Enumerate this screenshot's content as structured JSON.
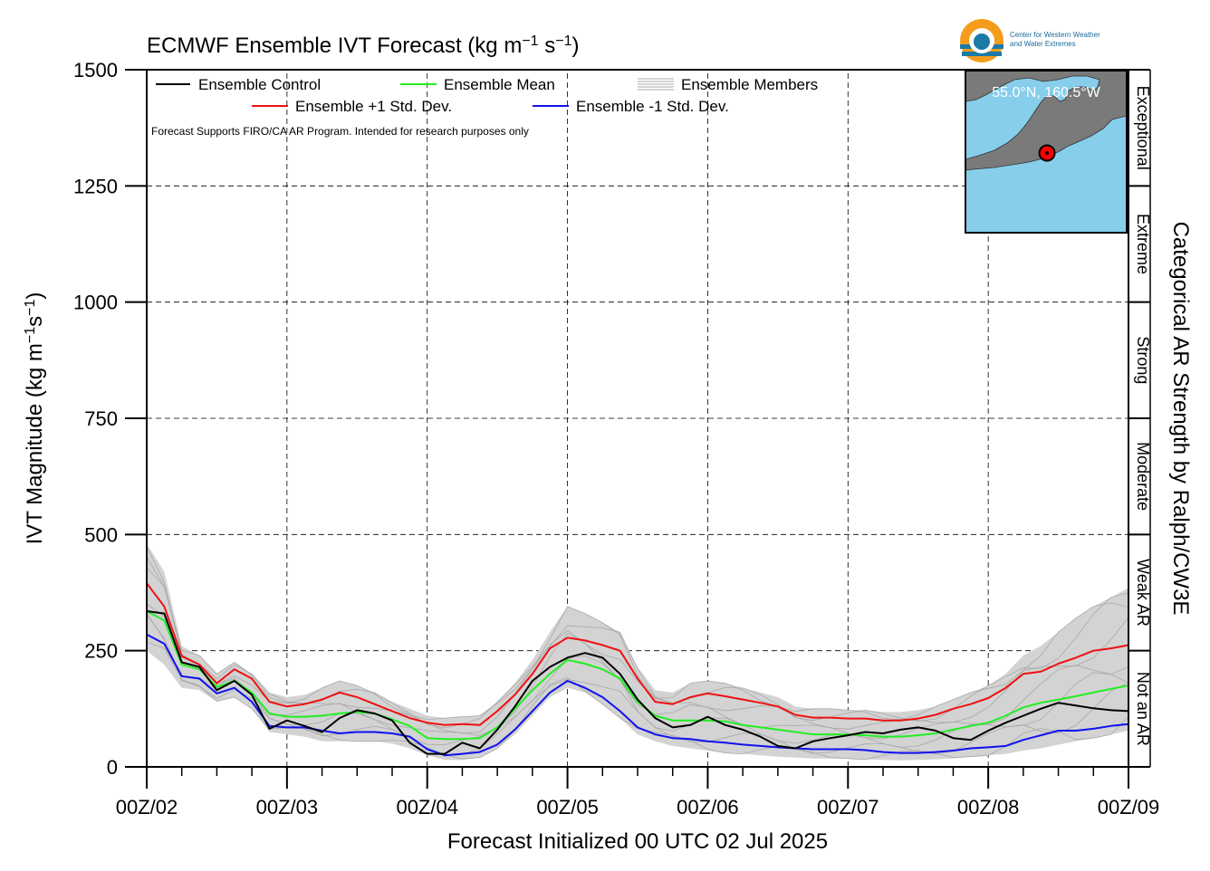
{
  "chart_data": {
    "type": "line",
    "title_main": "ECMWF Ensemble IVT Forecast (kg m",
    "title_exp1": "−1",
    "title_mid": " s",
    "title_exp2": "−1",
    "title_close": ")",
    "ylabel_main": "IVT Magnitude (kg m",
    "ylabel_exp1": "−1",
    "ylabel_mid": "s",
    "ylabel_exp2": "−1",
    "ylabel_close": ")",
    "xlabel": "Forecast Initialized 00 UTC 02 Jul 2025",
    "right_axis_label": "Categorical AR Strength by Ralph/CW3E",
    "note": "Forecast Supports FIRO/CA AR Program. Intended for research purposes only",
    "logo_text_line1": "Center for Western Weather",
    "logo_text_line2": "and Water Extremes",
    "inset_location": "55.0°N, 160.5°W",
    "ylim": [
      0,
      1500
    ],
    "xlim_hours": [
      0,
      168
    ],
    "yticks": [
      "0",
      "250",
      "500",
      "750",
      "1000",
      "1250",
      "1500"
    ],
    "xticks": [
      "00Z/02",
      "00Z/03",
      "00Z/04",
      "00Z/05",
      "00Z/06",
      "00Z/07",
      "00Z/08",
      "00Z/09"
    ],
    "categories_right": [
      {
        "label": "Not an AR",
        "from": 0,
        "to": 250
      },
      {
        "label": "Weak AR",
        "from": 250,
        "to": 500
      },
      {
        "label": "Moderate",
        "from": 500,
        "to": 750
      },
      {
        "label": "Strong",
        "from": 750,
        "to": 1000
      },
      {
        "label": "Extreme",
        "from": 1000,
        "to": 1250
      },
      {
        "label": "Exceptional",
        "from": 1250,
        "to": 1500
      }
    ],
    "legend": [
      {
        "label": "Ensemble Control",
        "color": "#000000"
      },
      {
        "label": "Ensemble Mean",
        "color": "#22ee22"
      },
      {
        "label": "Ensemble Members",
        "color": "#aaaaaa"
      },
      {
        "label": "Ensemble +1 Std. Dev.",
        "color": "#ee1111"
      },
      {
        "label": "Ensemble -1 Std. Dev.",
        "color": "#1111ee"
      }
    ],
    "grid": true,
    "hours": [
      0,
      3,
      6,
      9,
      12,
      15,
      18,
      21,
      24,
      27,
      30,
      33,
      36,
      39,
      42,
      45,
      48,
      51,
      54,
      57,
      60,
      63,
      66,
      69,
      72,
      75,
      78,
      81,
      84,
      87,
      90,
      93,
      96,
      99,
      102,
      105,
      108,
      111,
      114,
      117,
      120,
      123,
      126,
      129,
      132,
      135,
      138,
      141,
      144,
      147,
      150,
      153,
      156,
      159,
      162,
      165,
      168
    ],
    "series": [
      {
        "name": "Ensemble Control",
        "color": "#000000",
        "values": [
          335,
          330,
          225,
          215,
          165,
          185,
          155,
          82,
          100,
          88,
          75,
          105,
          122,
          115,
          100,
          52,
          28,
          28,
          52,
          40,
          80,
          130,
          185,
          215,
          235,
          245,
          235,
          200,
          145,
          105,
          85,
          90,
          108,
          90,
          80,
          65,
          45,
          40,
          55,
          62,
          68,
          75,
          72,
          80,
          85,
          78,
          62,
          58,
          78,
          95,
          110,
          125,
          138,
          132,
          126,
          122,
          120
        ]
      },
      {
        "name": "Ensemble Mean",
        "color": "#22ee22",
        "values": [
          335,
          315,
          220,
          210,
          172,
          185,
          160,
          115,
          108,
          108,
          110,
          115,
          118,
          115,
          102,
          88,
          62,
          60,
          60,
          62,
          85,
          125,
          165,
          200,
          230,
          222,
          210,
          190,
          140,
          110,
          100,
          100,
          100,
          98,
          90,
          85,
          80,
          75,
          70,
          70,
          70,
          68,
          65,
          65,
          68,
          72,
          80,
          88,
          95,
          110,
          128,
          138,
          145,
          152,
          160,
          168,
          175
        ]
      },
      {
        "name": "Ensemble +1 Std. Dev.",
        "color": "#ee1111",
        "values": [
          395,
          345,
          238,
          220,
          180,
          210,
          190,
          140,
          130,
          135,
          145,
          160,
          150,
          135,
          120,
          105,
          95,
          90,
          92,
          90,
          120,
          155,
          200,
          255,
          278,
          272,
          262,
          250,
          190,
          140,
          135,
          150,
          158,
          152,
          145,
          138,
          130,
          112,
          106,
          106,
          104,
          104,
          100,
          100,
          104,
          112,
          125,
          135,
          148,
          170,
          200,
          205,
          222,
          235,
          250,
          255,
          262
        ]
      },
      {
        "name": "Ensemble -1 Std. Dev.",
        "color": "#1111ee",
        "values": [
          285,
          265,
          195,
          190,
          158,
          170,
          140,
          88,
          85,
          85,
          78,
          72,
          75,
          75,
          72,
          65,
          38,
          25,
          28,
          32,
          48,
          80,
          120,
          160,
          185,
          170,
          150,
          120,
          85,
          70,
          62,
          60,
          55,
          52,
          48,
          45,
          42,
          40,
          38,
          38,
          38,
          36,
          32,
          30,
          30,
          32,
          35,
          40,
          42,
          45,
          58,
          68,
          78,
          78,
          82,
          88,
          92
        ]
      }
    ],
    "members_band": {
      "lower": [
        250,
        220,
        170,
        165,
        140,
        150,
        125,
        75,
        70,
        65,
        55,
        55,
        55,
        55,
        50,
        40,
        25,
        15,
        15,
        20,
        40,
        70,
        110,
        150,
        170,
        160,
        135,
        105,
        70,
        55,
        45,
        40,
        35,
        30,
        28,
        25,
        22,
        20,
        18,
        18,
        18,
        16,
        15,
        14,
        15,
        16,
        18,
        22,
        25,
        28,
        35,
        40,
        48,
        55,
        62,
        70,
        78
      ],
      "upper": [
        480,
        420,
        260,
        240,
        200,
        225,
        200,
        160,
        150,
        155,
        170,
        185,
        175,
        160,
        140,
        125,
        110,
        105,
        108,
        110,
        140,
        180,
        230,
        290,
        345,
        330,
        310,
        290,
        215,
        165,
        160,
        180,
        185,
        180,
        170,
        160,
        150,
        130,
        125,
        125,
        122,
        122,
        118,
        118,
        122,
        130,
        145,
        160,
        175,
        200,
        240,
        260,
        290,
        320,
        345,
        365,
        385
      ]
    }
  }
}
